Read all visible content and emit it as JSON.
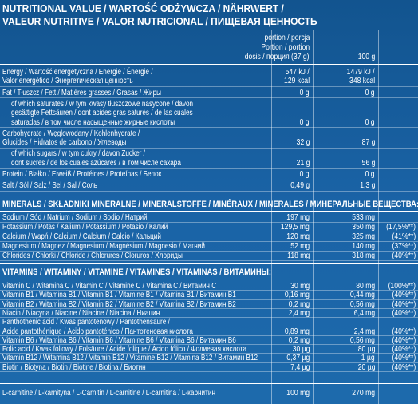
{
  "header": {
    "title": [
      "NUTRITIONAL VALUE / WARTOŚĆ ODŻYWCZA / NÄHRWERT /",
      "VALEUR NUTRITIVE / VALOR NUTRICIONAL / ПИЩЕВАЯ ЦЕННОСТЬ"
    ]
  },
  "columns": {
    "portion": [
      "portion / porcja",
      "Portion / portion",
      "dosis / порция (37 g)"
    ],
    "per100": "100 g"
  },
  "nutrition": {
    "rows": [
      {
        "label": [
          "Energy / Wartość energetyczna / Energie / Énergie /",
          "Valor energético / Энергетическая ценность"
        ],
        "portion": [
          "547 kJ /",
          "129 kcal"
        ],
        "per100": [
          "1479 kJ /",
          "348 kcal"
        ]
      },
      {
        "label": [
          "Fat / Tłuszcz / Fett / Matières grasses / Grasas / Жиры"
        ],
        "portion": [
          "0 g"
        ],
        "per100": [
          "0 g"
        ]
      },
      {
        "label": [
          "of which saturates / w tym kwasy tłuszczowe nasycone / davon",
          "gesättigte Fettsäuren / dont acides gras saturés / de las cuales",
          "saturadas / в том числе насыщенные жирные кислоты"
        ],
        "portion": [
          "0 g"
        ],
        "per100": [
          "0 g"
        ],
        "indent": true
      },
      {
        "label": [
          "Carbohydrate / Węglowodany / Kohlenhydrate /",
          "Glucides / Hidratos de carbono / Углеводы"
        ],
        "portion": [
          "32 g"
        ],
        "per100": [
          "87 g"
        ]
      },
      {
        "label": [
          "of which sugars / w tym cukry / davon Zucker /",
          "dont sucres / de los cuales azúcares / в том числе сахара"
        ],
        "portion": [
          "21 g"
        ],
        "per100": [
          "56 g"
        ],
        "indent": true
      },
      {
        "label": [
          "Protein / Białko / Eiweiß / Protéines / Proteínas / Белок"
        ],
        "portion": [
          "0 g"
        ],
        "per100": [
          "0 g"
        ]
      },
      {
        "label": [
          "Salt / Sól / Salz / Sel / Sal / Соль"
        ],
        "portion": [
          "0,49 g"
        ],
        "per100": [
          "1,3 g"
        ]
      }
    ]
  },
  "minerals": {
    "title": "MINERALS / SKŁADNIKI MINERALNE / MINERALSTOFFE / MINÉRAUX / MINERALES / МИНЕРАЛЬНЫЕ ВЕЩЕСТВА:",
    "rows": [
      {
        "label": [
          "Sodium / Sód / Natrium / Sodium / Sodio / Натрий"
        ],
        "portion": [
          "197 mg"
        ],
        "per100": [
          "533 mg"
        ]
      },
      {
        "label": [
          "Potassium / Potas / Kalium / Potassium / Potasio / Калий"
        ],
        "portion": [
          "129,5 mg"
        ],
        "per100": [
          "350 mg"
        ],
        "rda": "(17,5%**)"
      },
      {
        "label": [
          "Calcium / Wapń / Calcium / Calcium / Calcio / Кальций"
        ],
        "portion": [
          "120 mg"
        ],
        "per100": [
          "325 mg"
        ],
        "rda": "(41%**)"
      },
      {
        "label": [
          "Magnesium / Magnez / Magnesium / Magnésium / Magnesio / Магний"
        ],
        "portion": [
          "52 mg"
        ],
        "per100": [
          "140 mg"
        ],
        "rda": "(37%**)"
      },
      {
        "label": [
          "Chlorides / Chlorki / Chloride / Chlorures / Cloruros / Хлориды"
        ],
        "portion": [
          "118 mg"
        ],
        "per100": [
          "318 mg"
        ],
        "rda": "(40%**)"
      }
    ]
  },
  "vitamins": {
    "title": "VITAMINS / WITAMINY / VITAMINE / VITAMINES / VITAMINAS / ВИТАМИНЫ:",
    "rows": [
      {
        "label": [
          "Vitamin C / Witamina C / Vitamin C / Vitamine C / Vitamina C / Витамин C"
        ],
        "portion": [
          "30 mg"
        ],
        "per100": [
          "80 mg"
        ],
        "rda": "(100%**)"
      },
      {
        "label": [
          "Vitamin B1 / Witamina B1 / Vitamin B1 / Vitamine B1 / Vitamina B1 / Витамин B1"
        ],
        "portion": [
          "0,16 mg"
        ],
        "per100": [
          "0,44 mg"
        ],
        "rda": "(40%**)"
      },
      {
        "label": [
          "Vitamin B2 / Witamina B2 / Vitamin B2 / Vitamine B2 / Vitamina B2 / Витамин B2"
        ],
        "portion": [
          "0,2 mg"
        ],
        "per100": [
          "0,56 mg"
        ],
        "rda": "(40%**)"
      },
      {
        "label": [
          "Niacin / Niacyna / Niacine / Niacine / Niacina / Ниацин"
        ],
        "portion": [
          "2,4 mg"
        ],
        "per100": [
          "6,4 mg"
        ],
        "rda": "(40%**)"
      },
      {
        "label": [
          "Panthothenic acid / Kwas pantotenowy / Pantothensäure /",
          "Acide pantothénique / Ácido pantoténico / Пантотеновая кислота"
        ],
        "portion": [
          "0,89 mg"
        ],
        "per100": [
          "2,4 mg"
        ],
        "rda": "(40%**)"
      },
      {
        "label": [
          "Vitamin B6 / Witamina B6 / Vitamin B6 / Vitamine B6 / Vitamina B6 / Витамин B6"
        ],
        "portion": [
          "0,2 mg"
        ],
        "per100": [
          "0,56 mg"
        ],
        "rda": "(40%**)"
      },
      {
        "label": [
          "Folic acid / Kwas foliowy / Folsäure / Acide folique / Ácido fólico / Фолиевая кислота"
        ],
        "portion": [
          "30 µg"
        ],
        "per100": [
          "80 µg"
        ],
        "rda": "(40%**)"
      },
      {
        "label": [
          "Vitamin B12 / Witamina B12 / Vitamin B12 / Vitamine B12 / Vitamina B12 / Витамин B12"
        ],
        "portion": [
          "0,37 µg"
        ],
        "per100": [
          "1 µg"
        ],
        "rda": "(40%**)"
      },
      {
        "label": [
          "Biotin / Biotyna / Biotin / Biotine / Biotina / Биотин"
        ],
        "portion": [
          "7,4 µg"
        ],
        "per100": [
          "20 µg"
        ],
        "rda": "(40%**)"
      }
    ]
  },
  "carnitine": {
    "rows": [
      {
        "label": [
          "L-carnitine / L-karnityna / L-Carnitin / L-carnitine / L-carnitina / L-карнитин"
        ],
        "portion": [
          "100 mg"
        ],
        "per100": [
          "270 mg"
        ]
      }
    ]
  }
}
